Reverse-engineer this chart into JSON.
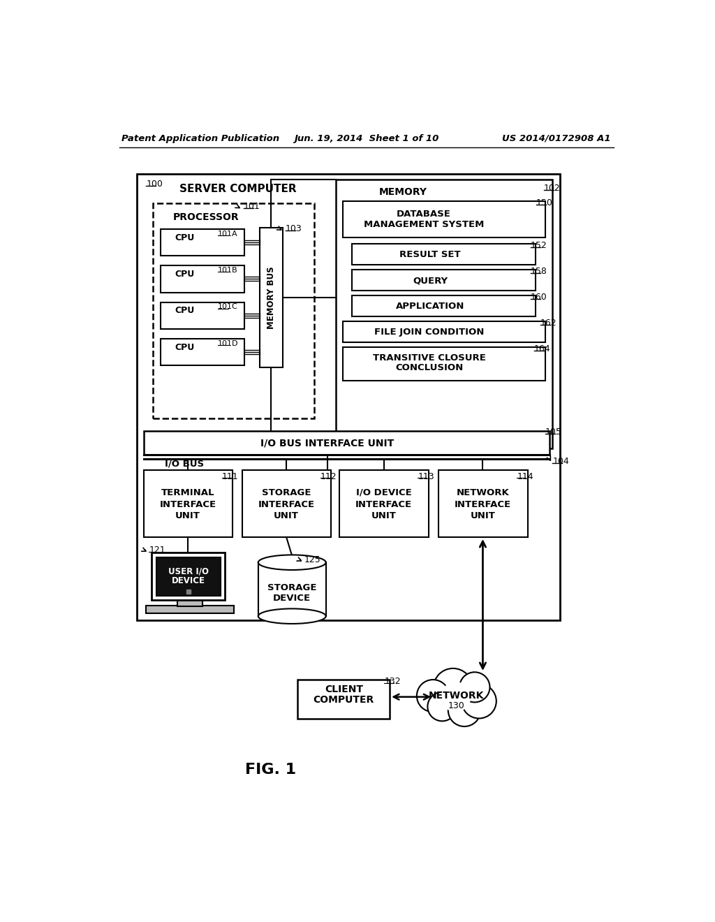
{
  "title_left": "Patent Application Publication",
  "title_center": "Jun. 19, 2014  Sheet 1 of 10",
  "title_right": "US 2014/0172908 A1",
  "fig_label": "FIG. 1",
  "background": "#ffffff",
  "text_color": "#000000"
}
